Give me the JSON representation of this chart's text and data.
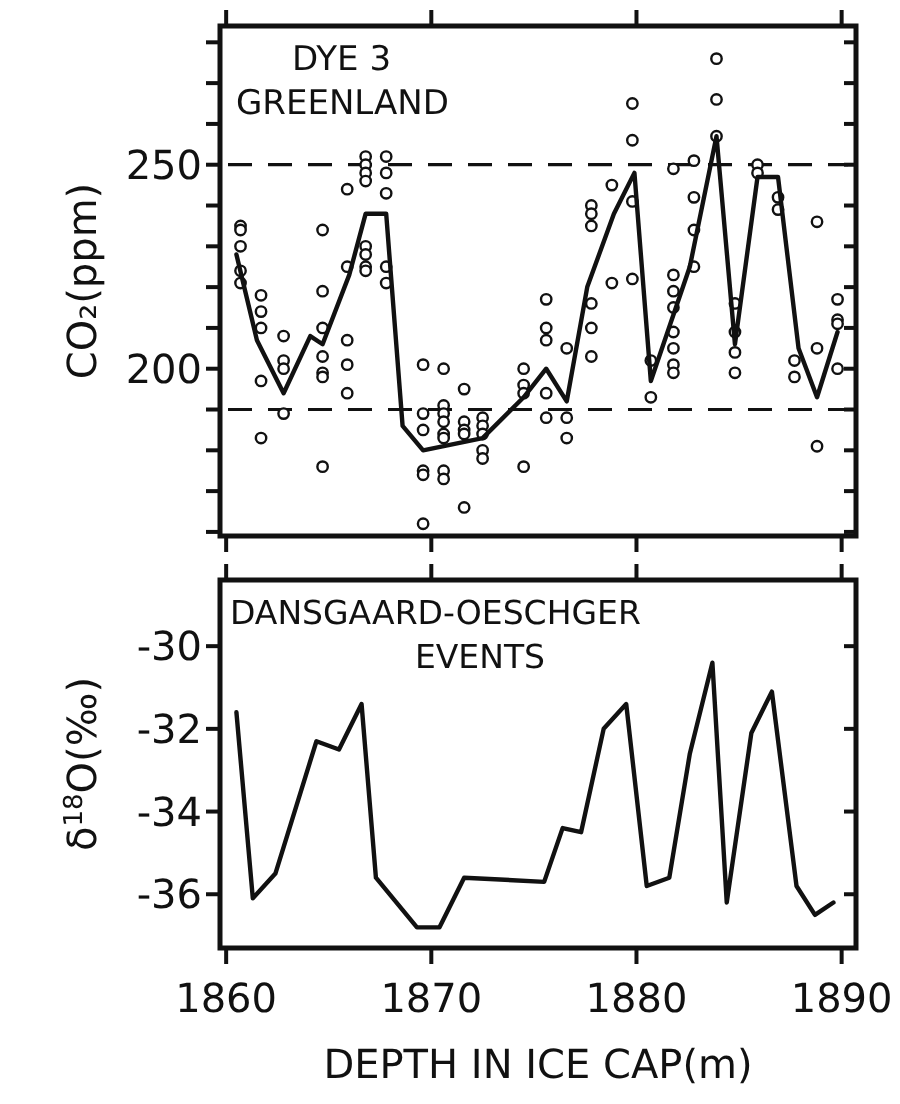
{
  "chart_data": [
    {
      "type": "scatter",
      "title": "DYE 3\nGREENLAND",
      "ylabel": "CO₂(ppm)",
      "xlim": [
        1859.7,
        1890.7
      ],
      "xticks": [
        1860,
        1870,
        1880,
        1890
      ],
      "ylim": [
        159,
        284
      ],
      "yticks": [
        {
          "value": 160,
          "label": null
        },
        {
          "value": 170,
          "label": null
        },
        {
          "value": 180,
          "label": null
        },
        {
          "value": 190,
          "label": null
        },
        200,
        {
          "value": 210,
          "label": null
        },
        {
          "value": 220,
          "label": null
        },
        {
          "value": 230,
          "label": null
        },
        {
          "value": 240,
          "label": null
        },
        250,
        {
          "value": 260,
          "label": null
        },
        {
          "value": 270,
          "label": null
        },
        {
          "value": 280,
          "label": null
        }
      ],
      "tick_labels": "y",
      "grid": false,
      "ref_lines": [
        {
          "axis": "y",
          "value": 250,
          "line_style": "dashed",
          "color": "#111111"
        },
        {
          "axis": "y",
          "value": 190,
          "line_style": "dashed",
          "color": "#111111"
        }
      ],
      "series": [
        {
          "type": "scatter",
          "marker": "circle",
          "color": "#111111",
          "x": [
            1860.7,
            1860.7,
            1860.7,
            1860.7,
            1860.7,
            1861.7,
            1861.7,
            1861.7,
            1861.7,
            1861.7,
            1862.8,
            1862.8,
            1862.8,
            1862.8,
            1864.7,
            1864.7,
            1864.7,
            1864.7,
            1864.7,
            1864.7,
            1864.7,
            1865.9,
            1865.9,
            1865.9,
            1865.9,
            1865.9,
            1866.8,
            1866.8,
            1866.8,
            1866.8,
            1866.8,
            1866.8,
            1866.8,
            1866.8,
            1867.8,
            1867.8,
            1867.8,
            1867.8,
            1867.8,
            1869.6,
            1869.6,
            1869.6,
            1869.6,
            1869.6,
            1869.6,
            1870.6,
            1870.6,
            1870.6,
            1870.6,
            1870.6,
            1870.6,
            1870.6,
            1870.6,
            1871.6,
            1871.6,
            1871.6,
            1871.6,
            1871.6,
            1872.5,
            1872.5,
            1872.5,
            1872.5,
            1872.5,
            1874.5,
            1874.5,
            1874.5,
            1874.5,
            1875.6,
            1875.6,
            1875.6,
            1875.6,
            1875.6,
            1876.6,
            1876.6,
            1876.6,
            1877.8,
            1877.8,
            1877.8,
            1877.8,
            1877.8,
            1877.8,
            1878.8,
            1878.8,
            1879.8,
            1879.8,
            1879.8,
            1879.8,
            1880.7,
            1880.7,
            1881.8,
            1881.8,
            1881.8,
            1881.8,
            1881.8,
            1881.8,
            1881.8,
            1881.8,
            1882.8,
            1882.8,
            1882.8,
            1882.8,
            1883.9,
            1883.9,
            1883.9,
            1884.8,
            1884.8,
            1884.8,
            1884.8,
            1885.9,
            1885.9,
            1886.9,
            1886.9,
            1887.7,
            1887.7,
            1888.8,
            1888.8,
            1888.8,
            1889.8,
            1889.8,
            1889.8,
            1889.8
          ],
          "values": [
            235,
            234,
            230,
            224,
            221,
            218,
            214,
            210,
            197,
            183,
            208,
            202,
            200,
            189,
            234,
            219,
            210,
            203,
            199,
            198,
            176,
            244,
            225,
            207,
            201,
            194,
            252,
            250,
            248,
            246,
            230,
            228,
            225,
            224,
            252,
            248,
            243,
            225,
            221,
            201,
            189,
            185,
            175,
            174,
            162,
            200,
            191,
            189,
            187,
            184,
            183,
            175,
            173,
            195,
            187,
            185,
            184,
            166,
            188,
            186,
            184,
            180,
            178,
            200,
            196,
            194,
            176,
            217,
            210,
            207,
            194,
            188,
            205,
            188,
            183,
            240,
            238,
            235,
            216,
            210,
            203,
            221,
            245,
            265,
            256,
            241,
            222,
            193,
            202,
            249,
            223,
            219,
            215,
            209,
            205,
            201,
            199,
            251,
            242,
            234,
            225,
            276,
            266,
            257,
            216,
            209,
            204,
            199,
            250,
            248,
            242,
            239,
            202,
            198,
            236,
            205,
            181,
            217,
            212,
            211,
            200
          ]
        },
        {
          "type": "line",
          "marker": "none",
          "line_style": "solid",
          "color": "#111111",
          "x": [
            1860.5,
            1861.5,
            1862.8,
            1864.1,
            1864.7,
            1866.0,
            1866.8,
            1867.8,
            1868.6,
            1869.6,
            1872.5,
            1874.5,
            1875.6,
            1876.6,
            1877.6,
            1878.9,
            1879.9,
            1880.7,
            1882.6,
            1883.9,
            1884.8,
            1885.9,
            1886.9,
            1887.9,
            1888.8,
            1889.8
          ],
          "values": [
            228,
            207,
            194,
            208,
            206,
            223,
            238,
            238,
            186,
            180,
            183,
            193,
            200,
            192,
            220,
            238,
            248,
            197,
            225,
            257,
            206,
            247,
            247,
            205,
            193,
            209
          ]
        }
      ]
    },
    {
      "type": "line",
      "title": "DANSGAARD-OESCHGER\nEVENTS",
      "xlabel": "DEPTH IN ICE CAP(m)",
      "ylabel": "δ$^{18}$O(‰)",
      "xlim": [
        1859.7,
        1890.7
      ],
      "xticks": [
        1860,
        1870,
        1880,
        1890
      ],
      "ylim": [
        -37.3,
        -28.4
      ],
      "yticks": [
        -36,
        -34,
        -32,
        -30
      ],
      "grid": false,
      "marker": "none",
      "line_style": "solid",
      "series": [
        {
          "color": "#111111",
          "x": [
            1860.5,
            1861.3,
            1862.4,
            1864.4,
            1865.5,
            1866.6,
            1867.3,
            1869.3,
            1870.4,
            1871.6,
            1875.5,
            1876.4,
            1877.3,
            1878.4,
            1879.5,
            1880.5,
            1881.6,
            1882.6,
            1883.7,
            1884.4,
            1885.6,
            1886.6,
            1887.8,
            1888.7,
            1889.6
          ],
          "values": [
            -31.6,
            -36.1,
            -35.5,
            -32.3,
            -32.5,
            -31.4,
            -35.6,
            -36.8,
            -36.8,
            -35.6,
            -35.7,
            -34.4,
            -34.5,
            -32.0,
            -31.4,
            -35.8,
            -35.6,
            -32.6,
            -30.4,
            -36.2,
            -32.1,
            -31.1,
            -35.8,
            -36.5,
            -36.2
          ]
        }
      ]
    }
  ]
}
